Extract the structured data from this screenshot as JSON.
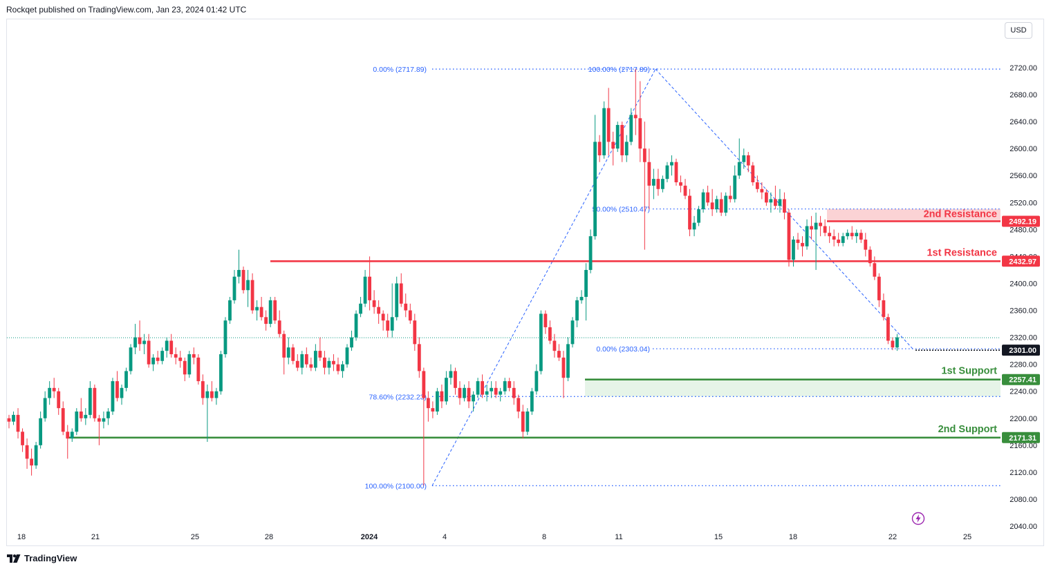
{
  "header": {
    "text": "Rockqet published on TradingView.com, Jan 23, 2024 01:42 UTC"
  },
  "currency": "USD",
  "footer": {
    "brand": "TradingView"
  },
  "colors": {
    "up": "#089981",
    "down": "#f23645",
    "resistance": "#f23645",
    "support": "#388e3c",
    "fib": "#2962ff",
    "resistance_zone": "#fbd3d5",
    "support_zone": "#e6f4e8",
    "label_resistance": "#f23645",
    "label_support": "#388e3c",
    "label_price": "#131722"
  },
  "chart_data": {
    "type": "candlestick",
    "symbol_currency": "USD",
    "y_axis": {
      "range": [
        2030,
        2765
      ],
      "ticks": [
        "2720.00",
        "2680.00",
        "2640.00",
        "2600.00",
        "2560.00",
        "2520.00",
        "2480.00",
        "2440.00",
        "2400.00",
        "2360.00",
        "2320.00",
        "2280.00",
        "2240.00",
        "2200.00",
        "2160.00",
        "2120.00",
        "2080.00",
        "2040.00"
      ]
    },
    "x_axis": {
      "ticks": [
        "18",
        "21",
        "25",
        "28",
        "2024",
        "4",
        "8",
        "11",
        "15",
        "18",
        "22",
        "25"
      ],
      "bold": [
        "2024"
      ]
    },
    "price_labels": [
      {
        "text": "2492.19",
        "value": 2492.19,
        "kind": "resistance"
      },
      {
        "text": "2432.97",
        "value": 2432.97,
        "kind": "resistance"
      },
      {
        "text": "2301.00",
        "value": 2301.0,
        "kind": "price"
      },
      {
        "text": "2257.41",
        "value": 2257.41,
        "kind": "support"
      },
      {
        "text": "2171.31",
        "value": 2171.31,
        "kind": "support"
      }
    ],
    "levels": [
      {
        "name": "2nd Resistance",
        "value": 2492.19,
        "zone": [
          2492.19,
          2510.47
        ]
      },
      {
        "name": "1st Resistance",
        "value": 2432.97
      },
      {
        "name": "1st Support",
        "value": 2257.41,
        "zone": [
          2232.23,
          2257.41
        ]
      },
      {
        "name": "2nd Support",
        "value": 2171.31
      }
    ],
    "fib_levels": [
      {
        "label": "0.00% (2717.89)",
        "value": 2717.89
      },
      {
        "label": "100.00% (2717.89)",
        "value": 2717.89
      },
      {
        "label": "50.00% (2510.47)",
        "value": 2510.47
      },
      {
        "label": "0.00% (2303.04)",
        "value": 2303.04
      },
      {
        "label": "78.60% (2232.23)",
        "value": 2232.23
      },
      {
        "label": "100.00% (2100.00)",
        "value": 2100.0
      }
    ],
    "last_price": 2319.5,
    "candles": [
      [
        2200,
        2205,
        2185,
        2195
      ],
      [
        2195,
        2210,
        2190,
        2205
      ],
      [
        2205,
        2215,
        2170,
        2180
      ],
      [
        2180,
        2185,
        2150,
        2160
      ],
      [
        2160,
        2170,
        2125,
        2140
      ],
      [
        2140,
        2155,
        2115,
        2130
      ],
      [
        2130,
        2165,
        2125,
        2160
      ],
      [
        2160,
        2210,
        2155,
        2200
      ],
      [
        2200,
        2240,
        2195,
        2230
      ],
      [
        2230,
        2255,
        2220,
        2245
      ],
      [
        2245,
        2260,
        2230,
        2240
      ],
      [
        2240,
        2245,
        2205,
        2215
      ],
      [
        2215,
        2225,
        2175,
        2180
      ],
      [
        2180,
        2190,
        2140,
        2170
      ],
      [
        2170,
        2185,
        2165,
        2180
      ],
      [
        2180,
        2215,
        2175,
        2210
      ],
      [
        2210,
        2230,
        2195,
        2200
      ],
      [
        2200,
        2215,
        2190,
        2205
      ],
      [
        2205,
        2255,
        2200,
        2245
      ],
      [
        2245,
        2250,
        2195,
        2200
      ],
      [
        2200,
        2205,
        2160,
        2195
      ],
      [
        2195,
        2210,
        2185,
        2200
      ],
      [
        2200,
        2215,
        2190,
        2210
      ],
      [
        2210,
        2260,
        2205,
        2255
      ],
      [
        2255,
        2270,
        2225,
        2230
      ],
      [
        2230,
        2250,
        2220,
        2245
      ],
      [
        2245,
        2275,
        2240,
        2270
      ],
      [
        2270,
        2310,
        2265,
        2305
      ],
      [
        2305,
        2340,
        2295,
        2320
      ],
      [
        2320,
        2345,
        2300,
        2310
      ],
      [
        2310,
        2325,
        2295,
        2315
      ],
      [
        2315,
        2325,
        2275,
        2280
      ],
      [
        2280,
        2295,
        2270,
        2290
      ],
      [
        2290,
        2300,
        2280,
        2285
      ],
      [
        2285,
        2305,
        2280,
        2300
      ],
      [
        2300,
        2320,
        2290,
        2315
      ],
      [
        2315,
        2325,
        2290,
        2295
      ],
      [
        2295,
        2305,
        2280,
        2290
      ],
      [
        2290,
        2300,
        2275,
        2285
      ],
      [
        2285,
        2290,
        2255,
        2265
      ],
      [
        2265,
        2300,
        2260,
        2295
      ],
      [
        2295,
        2305,
        2280,
        2290
      ],
      [
        2290,
        2295,
        2250,
        2255
      ],
      [
        2255,
        2265,
        2220,
        2230
      ],
      [
        2230,
        2250,
        2165,
        2240
      ],
      [
        2240,
        2255,
        2225,
        2230
      ],
      [
        2230,
        2245,
        2220,
        2240
      ],
      [
        2240,
        2300,
        2235,
        2295
      ],
      [
        2295,
        2350,
        2290,
        2345
      ],
      [
        2345,
        2380,
        2340,
        2375
      ],
      [
        2375,
        2420,
        2370,
        2410
      ],
      [
        2410,
        2450,
        2400,
        2420
      ],
      [
        2420,
        2425,
        2385,
        2390
      ],
      [
        2390,
        2420,
        2365,
        2405
      ],
      [
        2405,
        2415,
        2355,
        2360
      ],
      [
        2360,
        2375,
        2345,
        2365
      ],
      [
        2365,
        2380,
        2345,
        2350
      ],
      [
        2350,
        2360,
        2330,
        2340
      ],
      [
        2340,
        2380,
        2335,
        2375
      ],
      [
        2375,
        2380,
        2340,
        2345
      ],
      [
        2345,
        2360,
        2320,
        2325
      ],
      [
        2325,
        2330,
        2265,
        2290
      ],
      [
        2290,
        2320,
        2280,
        2305
      ],
      [
        2305,
        2310,
        2280,
        2285
      ],
      [
        2285,
        2295,
        2270,
        2275
      ],
      [
        2275,
        2300,
        2265,
        2295
      ],
      [
        2295,
        2305,
        2275,
        2280
      ],
      [
        2280,
        2290,
        2270,
        2275
      ],
      [
        2275,
        2310,
        2270,
        2300
      ],
      [
        2300,
        2320,
        2285,
        2290
      ],
      [
        2290,
        2300,
        2265,
        2275
      ],
      [
        2275,
        2290,
        2265,
        2285
      ],
      [
        2285,
        2295,
        2270,
        2280
      ],
      [
        2280,
        2290,
        2265,
        2270
      ],
      [
        2270,
        2285,
        2260,
        2280
      ],
      [
        2280,
        2310,
        2275,
        2305
      ],
      [
        2305,
        2330,
        2300,
        2320
      ],
      [
        2320,
        2360,
        2315,
        2355
      ],
      [
        2355,
        2380,
        2350,
        2370
      ],
      [
        2370,
        2420,
        2365,
        2410
      ],
      [
        2410,
        2440,
        2360,
        2375
      ],
      [
        2375,
        2390,
        2355,
        2365
      ],
      [
        2365,
        2375,
        2340,
        2355
      ],
      [
        2355,
        2360,
        2330,
        2345
      ],
      [
        2345,
        2355,
        2320,
        2330
      ],
      [
        2330,
        2400,
        2320,
        2350
      ],
      [
        2350,
        2410,
        2345,
        2400
      ],
      [
        2400,
        2415,
        2365,
        2370
      ],
      [
        2370,
        2385,
        2350,
        2360
      ],
      [
        2360,
        2370,
        2340,
        2345
      ],
      [
        2345,
        2355,
        2300,
        2310
      ],
      [
        2310,
        2320,
        2260,
        2270
      ],
      [
        2270,
        2275,
        2100,
        2230
      ],
      [
        2230,
        2240,
        2195,
        2215
      ],
      [
        2215,
        2225,
        2200,
        2210
      ],
      [
        2210,
        2245,
        2205,
        2240
      ],
      [
        2240,
        2250,
        2215,
        2225
      ],
      [
        2225,
        2270,
        2220,
        2260
      ],
      [
        2260,
        2280,
        2250,
        2270
      ],
      [
        2270,
        2275,
        2235,
        2245
      ],
      [
        2245,
        2255,
        2220,
        2230
      ],
      [
        2230,
        2250,
        2225,
        2245
      ],
      [
        2245,
        2255,
        2215,
        2225
      ],
      [
        2225,
        2240,
        2210,
        2235
      ],
      [
        2235,
        2260,
        2230,
        2255
      ],
      [
        2255,
        2265,
        2230,
        2235
      ],
      [
        2235,
        2250,
        2225,
        2240
      ],
      [
        2240,
        2255,
        2230,
        2245
      ],
      [
        2245,
        2255,
        2230,
        2235
      ],
      [
        2235,
        2245,
        2225,
        2240
      ],
      [
        2240,
        2260,
        2235,
        2255
      ],
      [
        2255,
        2260,
        2240,
        2245
      ],
      [
        2245,
        2255,
        2220,
        2230
      ],
      [
        2230,
        2235,
        2200,
        2210
      ],
      [
        2210,
        2220,
        2170,
        2180
      ],
      [
        2180,
        2215,
        2175,
        2210
      ],
      [
        2210,
        2245,
        2205,
        2240
      ],
      [
        2240,
        2280,
        2235,
        2270
      ],
      [
        2270,
        2360,
        2265,
        2355
      ],
      [
        2355,
        2360,
        2325,
        2335
      ],
      [
        2335,
        2345,
        2310,
        2315
      ],
      [
        2315,
        2325,
        2290,
        2300
      ],
      [
        2300,
        2310,
        2285,
        2290
      ],
      [
        2290,
        2300,
        2230,
        2260
      ],
      [
        2260,
        2320,
        2255,
        2310
      ],
      [
        2310,
        2350,
        2305,
        2345
      ],
      [
        2345,
        2380,
        2335,
        2375
      ],
      [
        2375,
        2390,
        2370,
        2380
      ],
      [
        2380,
        2430,
        2345,
        2420
      ],
      [
        2420,
        2480,
        2415,
        2470
      ],
      [
        2470,
        2650,
        2465,
        2610
      ],
      [
        2610,
        2620,
        2580,
        2590
      ],
      [
        2590,
        2670,
        2585,
        2660
      ],
      [
        2660,
        2690,
        2590,
        2610
      ],
      [
        2610,
        2625,
        2575,
        2600
      ],
      [
        2600,
        2640,
        2595,
        2635
      ],
      [
        2635,
        2640,
        2580,
        2590
      ],
      [
        2590,
        2620,
        2580,
        2610
      ],
      [
        2610,
        2660,
        2605,
        2650
      ],
      [
        2650,
        2717.89,
        2620,
        2645
      ],
      [
        2645,
        2700,
        2580,
        2600
      ],
      [
        2600,
        2640,
        2450,
        2580
      ],
      [
        2580,
        2600,
        2510,
        2545
      ],
      [
        2545,
        2570,
        2525,
        2555
      ],
      [
        2555,
        2570,
        2530,
        2540
      ],
      [
        2540,
        2560,
        2535,
        2555
      ],
      [
        2555,
        2580,
        2550,
        2575
      ],
      [
        2575,
        2590,
        2560,
        2580
      ],
      [
        2580,
        2585,
        2545,
        2550
      ],
      [
        2550,
        2560,
        2535,
        2545
      ],
      [
        2545,
        2555,
        2525,
        2530
      ],
      [
        2530,
        2540,
        2470,
        2480
      ],
      [
        2480,
        2500,
        2470,
        2490
      ],
      [
        2490,
        2515,
        2485,
        2510
      ],
      [
        2510,
        2540,
        2505,
        2535
      ],
      [
        2535,
        2545,
        2515,
        2520
      ],
      [
        2520,
        2540,
        2500,
        2510
      ],
      [
        2510,
        2530,
        2505,
        2525
      ],
      [
        2525,
        2535,
        2500,
        2505
      ],
      [
        2505,
        2535,
        2500,
        2530
      ],
      [
        2530,
        2545,
        2520,
        2525
      ],
      [
        2525,
        2575,
        2520,
        2560
      ],
      [
        2560,
        2615,
        2555,
        2580
      ],
      [
        2580,
        2600,
        2570,
        2590
      ],
      [
        2590,
        2595,
        2565,
        2575
      ],
      [
        2575,
        2580,
        2545,
        2550
      ],
      [
        2550,
        2560,
        2535,
        2540
      ],
      [
        2540,
        2550,
        2525,
        2535
      ],
      [
        2535,
        2540,
        2515,
        2520
      ],
      [
        2520,
        2535,
        2505,
        2525
      ],
      [
        2525,
        2545,
        2510,
        2515
      ],
      [
        2515,
        2540,
        2505,
        2525
      ],
      [
        2525,
        2535,
        2495,
        2505
      ],
      [
        2505,
        2510,
        2425,
        2435
      ],
      [
        2435,
        2470,
        2425,
        2465
      ],
      [
        2465,
        2475,
        2450,
        2460
      ],
      [
        2460,
        2470,
        2440,
        2455
      ],
      [
        2455,
        2495,
        2450,
        2485
      ],
      [
        2485,
        2500,
        2465,
        2480
      ],
      [
        2480,
        2505,
        2420,
        2490
      ],
      [
        2490,
        2500,
        2470,
        2485
      ],
      [
        2485,
        2495,
        2470,
        2475
      ],
      [
        2475,
        2485,
        2460,
        2470
      ],
      [
        2470,
        2480,
        2455,
        2465
      ],
      [
        2465,
        2475,
        2455,
        2460
      ],
      [
        2460,
        2475,
        2455,
        2470
      ],
      [
        2470,
        2480,
        2465,
        2475
      ],
      [
        2475,
        2485,
        2465,
        2470
      ],
      [
        2470,
        2480,
        2460,
        2475
      ],
      [
        2475,
        2480,
        2460,
        2465
      ],
      [
        2465,
        2475,
        2440,
        2450
      ],
      [
        2450,
        2455,
        2425,
        2430
      ],
      [
        2430,
        2440,
        2405,
        2410
      ],
      [
        2410,
        2415,
        2365,
        2375
      ],
      [
        2375,
        2385,
        2345,
        2350
      ],
      [
        2350,
        2355,
        2310,
        2315
      ],
      [
        2315,
        2320,
        2301,
        2305
      ],
      [
        2305,
        2325,
        2300,
        2320
      ]
    ]
  }
}
